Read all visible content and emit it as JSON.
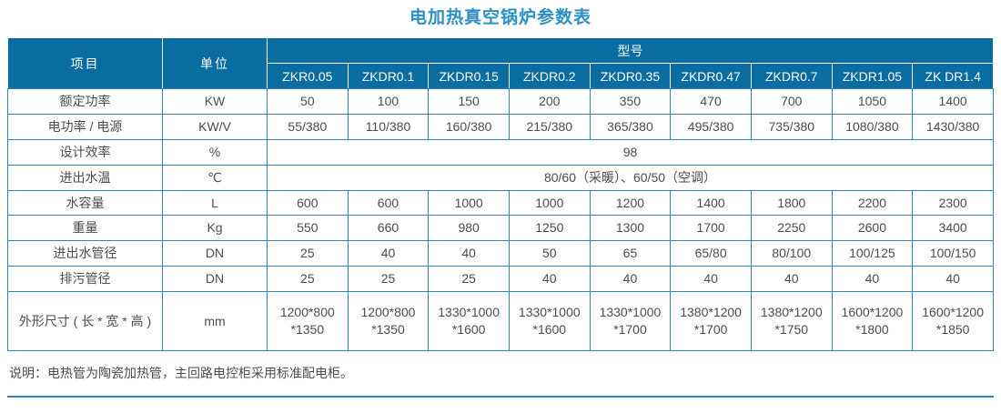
{
  "title": "电加热真空锅炉参数表",
  "colors": {
    "header_bg": "#0a6da1",
    "border_blue": "#2c86bb",
    "title_blue": "#2e8fc2",
    "cell_text": "#4d4d4d"
  },
  "table": {
    "corner_item": "项目",
    "corner_unit": "单位",
    "model_group_header": "型号",
    "models": [
      "ZKR0.05",
      "ZKDR0.1",
      "ZKDR0.15",
      "ZKDR0.2",
      "ZKDR0.35",
      "ZKDR0.47",
      "ZKDR0.7",
      "ZKDR1.05",
      "ZK DR1.4"
    ],
    "rows": [
      {
        "item": "额定功率",
        "unit": "KW",
        "values": [
          "50",
          "100",
          "150",
          "200",
          "350",
          "470",
          "700",
          "1050",
          "1400"
        ]
      },
      {
        "item": "电功率 / 电源",
        "unit": "KW/V",
        "values": [
          "55/380",
          "110/380",
          "160/380",
          "215/380",
          "365/380",
          "495/380",
          "735/380",
          "1080/380",
          "1430/380"
        ]
      },
      {
        "item": "设计效率",
        "unit": "%",
        "merged": "98"
      },
      {
        "item": "进出水温",
        "unit": "℃",
        "merged": "80/60（采暖）、60/50（空调）"
      },
      {
        "item": "水容量",
        "unit": "L",
        "values": [
          "600",
          "600",
          "1000",
          "1000",
          "1200",
          "1400",
          "1800",
          "2200",
          "2300"
        ]
      },
      {
        "item": "重量",
        "unit": "Kg",
        "values": [
          "550",
          "660",
          "980",
          "1250",
          "1300",
          "1700",
          "2250",
          "2600",
          "3400"
        ]
      },
      {
        "item": "进出水管径",
        "unit": "DN",
        "values": [
          "25",
          "40",
          "40",
          "50",
          "65",
          "65/80",
          "80/100",
          "100/125",
          "100/150"
        ]
      },
      {
        "item": "排污管径",
        "unit": "DN",
        "values": [
          "25",
          "25",
          "25",
          "40",
          "40",
          "40",
          "40",
          "40",
          "40"
        ]
      },
      {
        "item": "外形尺寸 ( 长 * 宽 * 高 )",
        "unit": "mm",
        "tall": true,
        "values": [
          "1200*800\n*1350",
          "1200*800\n*1350",
          "1330*1000\n*1600",
          "1330*1000\n*1600",
          "1330*1000\n*1700",
          "1380*1200\n*1700",
          "1380*1200\n*1750",
          "1600*1200\n*1800",
          "1600*1200\n*1850"
        ]
      }
    ]
  },
  "note": "说明：电热管为陶瓷加热管，主回路电控柜采用标准配电柜。"
}
